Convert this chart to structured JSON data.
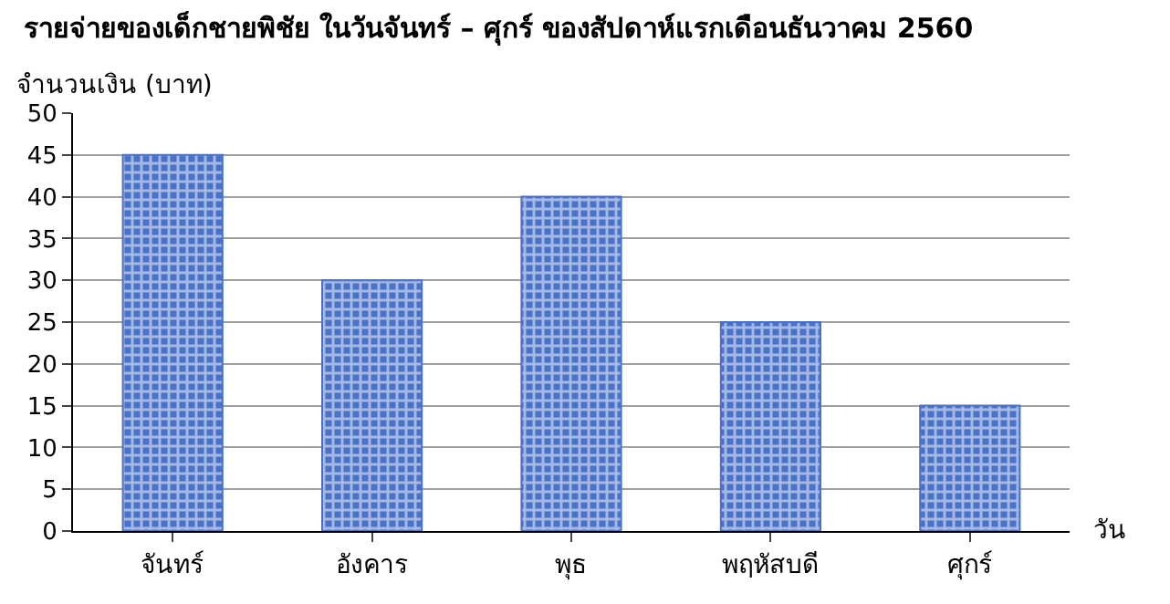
{
  "chart_data": {
    "type": "bar",
    "title": "รายจ่ายของเด็กชายพิชัย ในวันจันทร์ – ศุกร์ ของสัปดาห์แรกเดือนธันวาคม 2560",
    "ylabel": "จำนวนเงิน (บาท)",
    "xlabel": "วัน",
    "categories": [
      "จันทร์",
      "อังคาร",
      "พุธ",
      "พฤหัสบดี",
      "ศุกร์"
    ],
    "values": [
      45,
      30,
      40,
      25,
      15
    ],
    "color": "#4a72c8",
    "ylim": [
      0,
      50
    ],
    "yticks": [
      0,
      5,
      10,
      15,
      20,
      25,
      30,
      35,
      40,
      45,
      50
    ],
    "grid": "y"
  }
}
